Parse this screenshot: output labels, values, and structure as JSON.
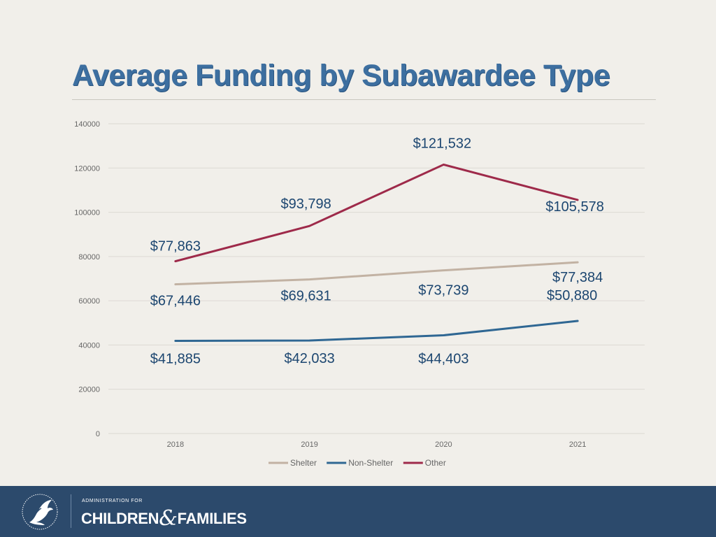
{
  "title": "Average Funding by Subawardee Type",
  "chart_data": {
    "type": "line",
    "title": "Average Funding by Subawardee Type",
    "categories": [
      "2018",
      "2019",
      "2020",
      "2021"
    ],
    "ylim": [
      0,
      140000
    ],
    "yticks": [
      0,
      20000,
      40000,
      60000,
      80000,
      100000,
      120000,
      140000
    ],
    "grid": true,
    "legend_position": "bottom",
    "series": [
      {
        "name": "Shelter",
        "color": "#c2b2a3",
        "values": [
          67446,
          69631,
          73739,
          77384
        ],
        "labels": [
          "$67,446",
          "$69,631",
          "$73,739",
          "$77,384"
        ]
      },
      {
        "name": "Non-Shelter",
        "color": "#2f6793",
        "values": [
          41885,
          42033,
          44403,
          50880
        ],
        "labels": [
          "$41,885",
          "$42,033",
          "$44,403",
          "$50,880"
        ]
      },
      {
        "name": "Other",
        "color": "#9e2a4a",
        "values": [
          77863,
          93798,
          121532,
          105578
        ],
        "labels": [
          "$77,863",
          "$93,798",
          "$121,532",
          "$105,578"
        ]
      }
    ]
  },
  "footer": {
    "admin_text": "ADMINISTRATION FOR",
    "brand_left": "CHILDREN",
    "brand_amp": "&",
    "brand_right": "FAMILIES",
    "bg_color": "#2c4a6c"
  }
}
